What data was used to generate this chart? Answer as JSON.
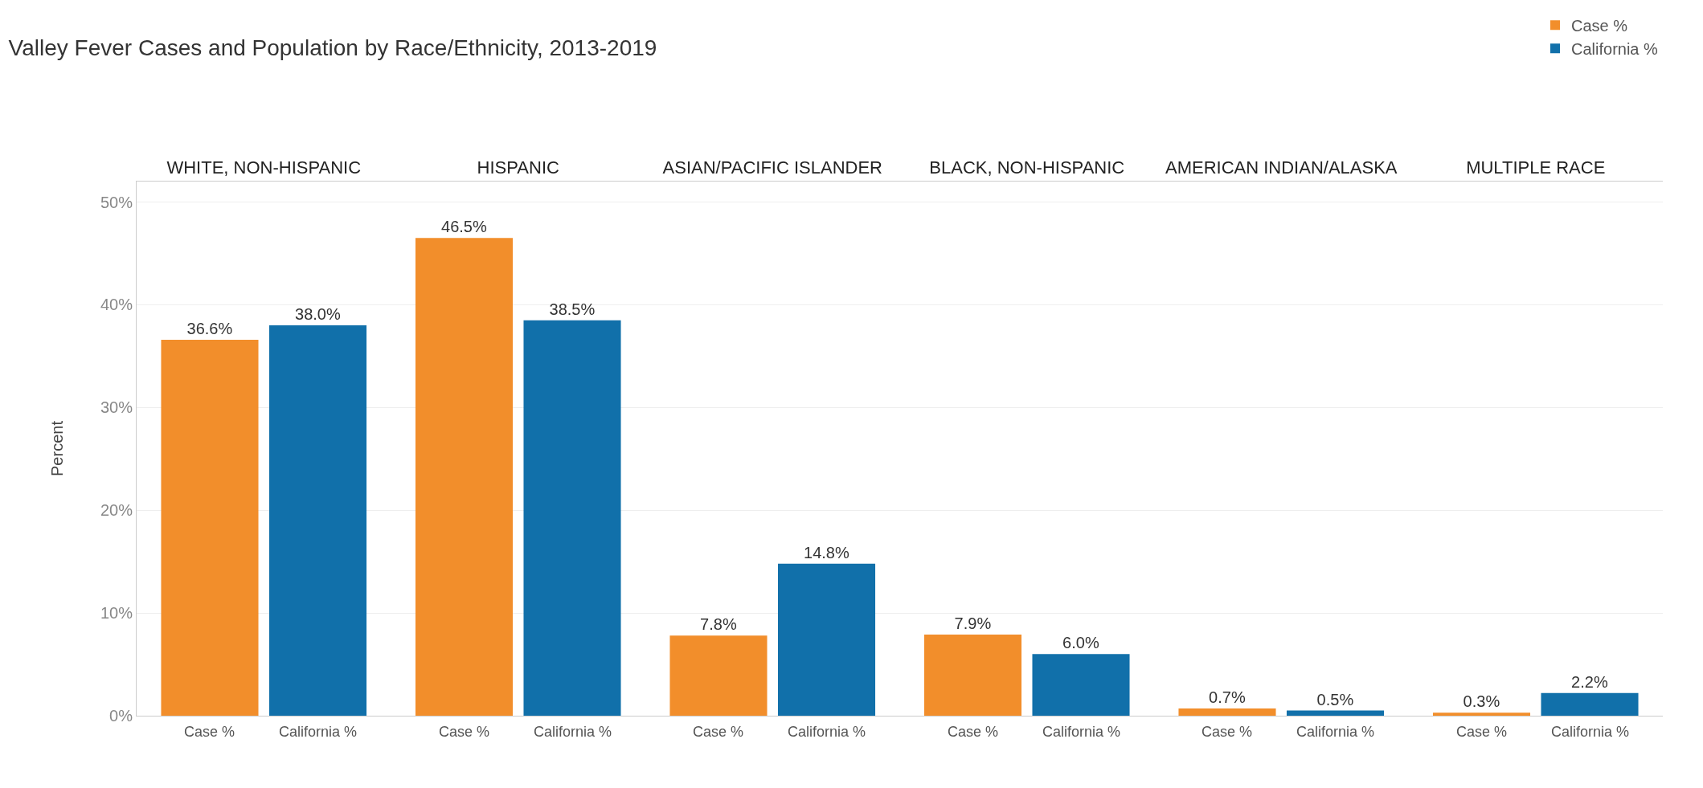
{
  "chart_data": {
    "type": "bar",
    "title": "Valley Fever Cases and Population by Race/Ethnicity, 2013-2019",
    "ylabel": "Percent",
    "categories": [
      "WHITE, NON-HISPANIC",
      "HISPANIC",
      "ASIAN/PACIFIC ISLANDER",
      "BLACK, NON-HISPANIC",
      "AMERICAN INDIAN/ALASKA",
      "MULTIPLE RACE"
    ],
    "series": [
      {
        "name": "Case %",
        "color": "#f28e2b",
        "values": [
          36.6,
          46.5,
          7.8,
          7.9,
          0.7,
          0.3
        ],
        "value_labels": [
          "36.6%",
          "46.5%",
          "7.8%",
          "7.9%",
          "0.7%",
          "0.3%"
        ]
      },
      {
        "name": "California %",
        "color": "#1170aa",
        "values": [
          38.0,
          38.5,
          14.8,
          6.0,
          0.5,
          2.2
        ],
        "value_labels": [
          "38.0%",
          "38.5%",
          "14.8%",
          "6.0%",
          "0.5%",
          "2.2%"
        ]
      }
    ],
    "ylim": [
      0,
      52
    ],
    "yticks": [
      {
        "value": 0,
        "label": "0%"
      },
      {
        "value": 10,
        "label": "10%"
      },
      {
        "value": 20,
        "label": "20%"
      },
      {
        "value": 30,
        "label": "30%"
      },
      {
        "value": 40,
        "label": "40%"
      },
      {
        "value": 50,
        "label": "50%"
      }
    ],
    "grid": "y",
    "legend": "top right"
  }
}
